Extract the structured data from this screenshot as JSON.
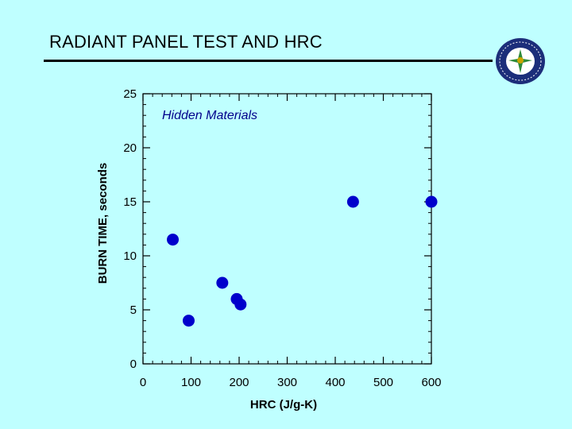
{
  "slide": {
    "title": "RADIANT PANEL TEST AND HRC"
  },
  "logo": {
    "icon": "faa-seal-icon",
    "colors": {
      "ring": "#1C2E7A",
      "field": "#FFFFFF",
      "accent": "#2E8B3A"
    }
  },
  "chart_data": {
    "type": "scatter",
    "xlabel": "HRC (J/g-K)",
    "ylabel": "BURN TIME, seconds",
    "annotation": "Hidden Materials",
    "xlim": [
      0,
      600
    ],
    "ylim": [
      0,
      25
    ],
    "xticks": [
      0,
      100,
      200,
      300,
      400,
      500,
      600
    ],
    "yticks": [
      0,
      5,
      10,
      15,
      20,
      25
    ],
    "grid": false,
    "marker_color": "#0000CC",
    "points": [
      {
        "x": 62,
        "y": 11.5
      },
      {
        "x": 95,
        "y": 4
      },
      {
        "x": 165,
        "y": 7.5
      },
      {
        "x": 195,
        "y": 6
      },
      {
        "x": 203,
        "y": 5.5
      },
      {
        "x": 437,
        "y": 15
      },
      {
        "x": 600,
        "y": 15
      }
    ]
  }
}
